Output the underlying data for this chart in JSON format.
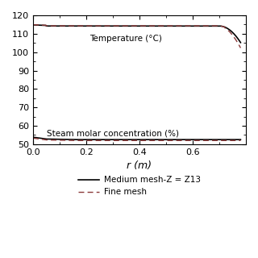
{
  "title": "",
  "xlabel": "r (m)",
  "ylabel": "",
  "xlim": [
    0,
    0.8
  ],
  "ylim": [
    50,
    120
  ],
  "yticks": [
    50,
    60,
    70,
    80,
    90,
    100,
    110,
    120
  ],
  "xticks": [
    0,
    0.2,
    0.4,
    0.6
  ],
  "temp_label": "Temperature (°C)",
  "steam_label": "Steam molar concentration (%)",
  "legend_medium": "Medium mesh-Z = Z13",
  "legend_fine": "Fine mesh",
  "line_color_medium": "#000000",
  "line_color_fine": "#8B3A3A",
  "background_color": "#ffffff"
}
